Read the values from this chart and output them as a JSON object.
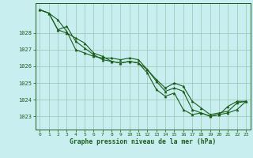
{
  "xlabel": "Graphe pression niveau de la mer (hPa)",
  "background_color": "#c8eef0",
  "grid_color": "#a0ccbb",
  "line_color": "#1a5c1a",
  "marker_color": "#1a5c1a",
  "xlim": [
    -0.5,
    23.5
  ],
  "ylim": [
    1022.2,
    1029.8
  ],
  "yticks": [
    1023,
    1024,
    1025,
    1026,
    1027,
    1028
  ],
  "xticks": [
    0,
    1,
    2,
    3,
    4,
    5,
    6,
    7,
    8,
    9,
    10,
    11,
    12,
    13,
    14,
    15,
    16,
    17,
    18,
    19,
    20,
    21,
    22,
    23
  ],
  "series": [
    [
      1029.4,
      1029.2,
      1028.8,
      1028.1,
      1027.0,
      1026.8,
      1026.6,
      1026.5,
      1026.5,
      1026.4,
      1026.5,
      1026.4,
      1025.8,
      1025.2,
      1024.7,
      1025.0,
      1024.8,
      1023.9,
      1023.5,
      1023.1,
      1023.2,
      1023.3,
      1023.8,
      1023.9
    ],
    [
      1029.4,
      1029.2,
      1028.2,
      1028.0,
      1027.7,
      1027.4,
      1026.8,
      1026.6,
      1026.3,
      1026.2,
      1026.3,
      1026.2,
      1025.6,
      1024.6,
      1024.2,
      1024.4,
      1023.4,
      1023.1,
      1023.2,
      1023.0,
      1023.1,
      1023.2,
      1023.4,
      1023.9
    ],
    [
      1029.4,
      1029.2,
      1028.2,
      1028.4,
      1027.5,
      1027.1,
      1026.7,
      1026.4,
      1026.3,
      1026.2,
      1026.3,
      1026.2,
      1025.8,
      1025.1,
      1024.5,
      1024.7,
      1024.5,
      1023.4,
      1023.2,
      1023.0,
      1023.1,
      1023.6,
      1023.9,
      1023.9
    ]
  ]
}
